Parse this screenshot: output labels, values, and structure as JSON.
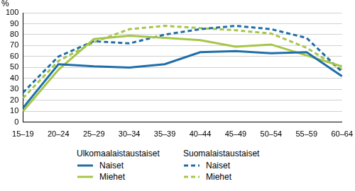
{
  "chart_data": {
    "type": "line",
    "y_label": "%",
    "categories": [
      "15–19",
      "20–24",
      "25–29",
      "30–34",
      "35–39",
      "40–44",
      "45–49",
      "50–54",
      "55–59",
      "60–64"
    ],
    "series": [
      {
        "name": "Naiset",
        "group": "Ulkomaalaistaustaiset",
        "color": "#1f6ea8",
        "line_style": "solid",
        "marker": "none",
        "values": [
          13,
          53,
          51,
          50,
          53,
          64,
          65,
          63,
          64,
          42
        ]
      },
      {
        "name": "Miehet",
        "group": "Ulkomaalaistaustaiset",
        "color": "#a5c64a",
        "line_style": "solid",
        "marker": "none",
        "values": [
          10,
          48,
          76,
          79,
          77,
          75,
          69,
          71,
          61,
          51
        ]
      },
      {
        "name": "Naiset",
        "group": "Suomalaistaustaiset",
        "color": "#1f6ea8",
        "line_style": "dashed",
        "marker": "none",
        "values": [
          27,
          60,
          74,
          72,
          80,
          85,
          88,
          85,
          77,
          46
        ]
      },
      {
        "name": "Miehet",
        "group": "Suomalaistaustaiset",
        "color": "#a5c64a",
        "line_style": "dashed",
        "marker": "none",
        "values": [
          22,
          56,
          73,
          85,
          88,
          86,
          84,
          81,
          68,
          48
        ]
      }
    ],
    "ylim": [
      0,
      100
    ],
    "yticks": [
      0,
      10,
      20,
      30,
      40,
      50,
      60,
      70,
      80,
      90,
      100
    ],
    "grid": true,
    "legend": "bottom"
  }
}
